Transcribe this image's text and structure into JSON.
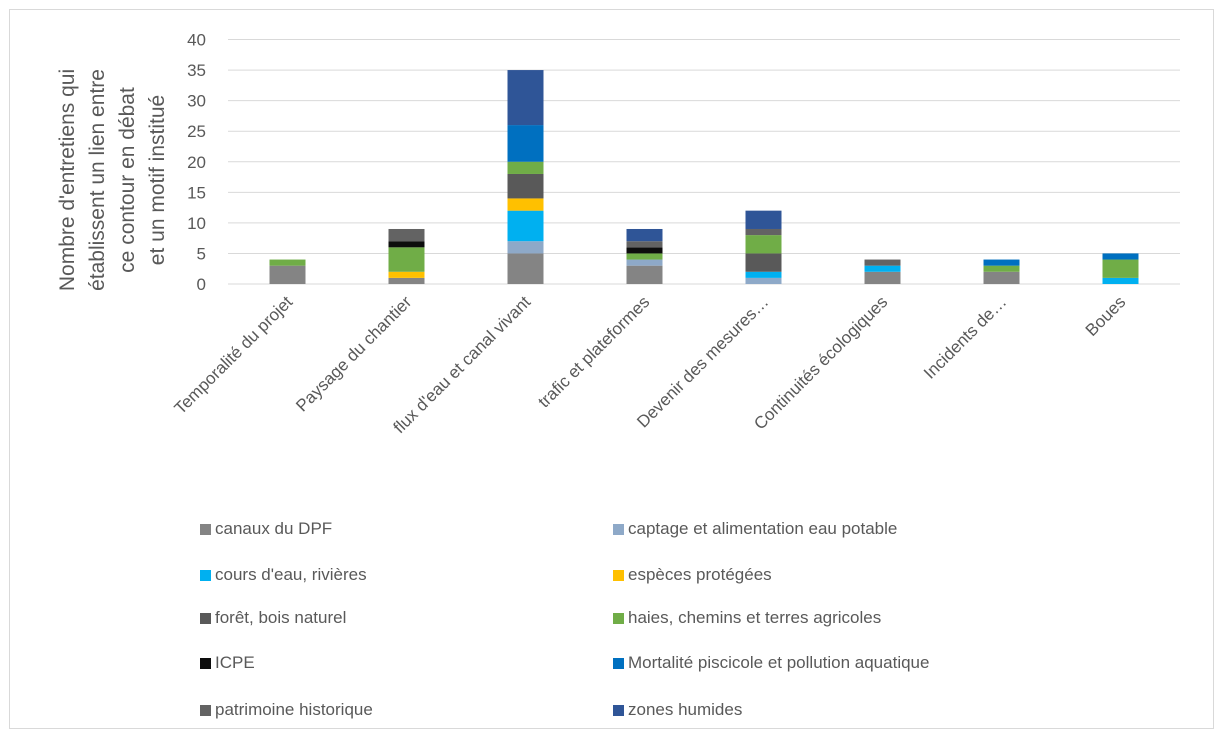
{
  "chart_data": {
    "type": "bar",
    "stacked": true,
    "ylabel": [
      "Nombre d'entretiens qui",
      "établissent un lien entre",
      "ce contour en débat",
      "et un motif institué"
    ],
    "ylim": [
      0,
      40
    ],
    "yticks": [
      0,
      5,
      10,
      15,
      20,
      25,
      30,
      35,
      40
    ],
    "grid": true,
    "legend_position": "bottom",
    "categories": [
      "Temporalité du projet",
      "Paysage du chantier",
      "flux d'eau et canal vivant",
      "trafic et plateformes",
      "Devenir des mesures…",
      "Continuités écologiques",
      "Incidents de…",
      "Boues"
    ],
    "series": [
      {
        "name": "canaux du DPF",
        "color": "#848484",
        "values": [
          3,
          1,
          5,
          3,
          0,
          2,
          2,
          0
        ]
      },
      {
        "name": "captage et alimentation eau potable",
        "color": "#8ea9c8",
        "values": [
          0,
          0,
          2,
          1,
          1,
          0,
          0,
          0
        ]
      },
      {
        "name": "cours d'eau, rivières",
        "color": "#00b0f0",
        "values": [
          0,
          0,
          5,
          0,
          1,
          1,
          0,
          1
        ]
      },
      {
        "name": "espèces protégées",
        "color": "#ffc000",
        "values": [
          0,
          1,
          2,
          0,
          0,
          0,
          0,
          0
        ]
      },
      {
        "name": "forêt, bois naturel",
        "color": "#595959",
        "values": [
          0,
          0,
          4,
          0,
          3,
          0,
          0,
          0
        ]
      },
      {
        "name": "haies, chemins et terres agricoles",
        "color": "#70ad47",
        "values": [
          1,
          4,
          2,
          1,
          3,
          0,
          1,
          3
        ]
      },
      {
        "name": "ICPE",
        "color": "#0d0d0d",
        "values": [
          0,
          1,
          0,
          1,
          0,
          0,
          0,
          0
        ]
      },
      {
        "name": "Mortalité piscicole et pollution aquatique",
        "color": "#0070c0",
        "values": [
          0,
          0,
          6,
          0,
          0,
          0,
          1,
          1
        ]
      },
      {
        "name": "patrimoine historique",
        "color": "#636363",
        "values": [
          0,
          2,
          0,
          1,
          1,
          1,
          0,
          0
        ]
      },
      {
        "name": "zones humides",
        "color": "#2f5597",
        "values": [
          0,
          0,
          9,
          2,
          3,
          0,
          0,
          0
        ]
      }
    ]
  }
}
